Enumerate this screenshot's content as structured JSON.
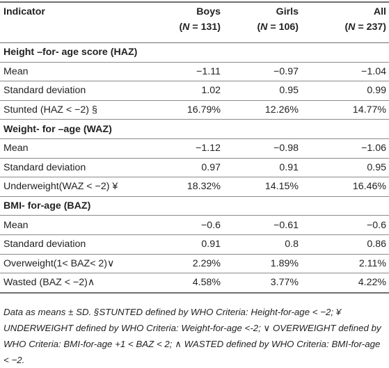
{
  "header": {
    "indicator": "Indicator",
    "columns": [
      {
        "name": "Boys",
        "n_label": "(N = 131)"
      },
      {
        "name": "Girls",
        "n_label": "(N = 106)"
      },
      {
        "name": "All",
        "n_label": "(N = 237)"
      }
    ]
  },
  "sections": [
    {
      "title": "Height –for- age score (HAZ)",
      "rows": [
        {
          "label": "Mean",
          "values": [
            "−1.11",
            "−0.97",
            "−1.04"
          ]
        },
        {
          "label": "Standard deviation",
          "values": [
            "1.02",
            "0.95",
            "0.99"
          ]
        },
        {
          "label": "Stunted (HAZ < −2) §",
          "values": [
            "16.79%",
            "12.26%",
            "14.77%"
          ]
        }
      ]
    },
    {
      "title": "Weight- for –age (WAZ)",
      "rows": [
        {
          "label": "Mean",
          "values": [
            "−1.12",
            "−0.98",
            "−1.06"
          ]
        },
        {
          "label": "Standard deviation",
          "values": [
            "0.97",
            "0.91",
            "0.95"
          ]
        },
        {
          "label": "Underweight(WAZ < −2) ¥",
          "values": [
            "18.32%",
            "14.15%",
            "16.46%"
          ]
        }
      ]
    },
    {
      "title": "BMI- for-age (BAZ)",
      "rows": [
        {
          "label": "Mean",
          "values": [
            "−0.6",
            "−0.61",
            "−0.6"
          ]
        },
        {
          "label": "Standard deviation",
          "values": [
            "0.91",
            "0.8",
            "0.86"
          ]
        },
        {
          "label": "Overweight(1< BAZ< 2)∨",
          "values": [
            "2.29%",
            "1.89%",
            "2.11%"
          ]
        },
        {
          "label": "Wasted (BAZ < −2)∧",
          "values": [
            "4.58%",
            "3.77%",
            "4.22%"
          ]
        }
      ]
    }
  ],
  "footnote": "Data as means ± SD. §STUNTED defined by WHO Criteria: Height-for-age < −2; ¥ UNDERWEIGHT defined by WHO Criteria: Weight-for-age <-2; ∨ OVERWEIGHT defined by WHO Criteria: BMI-for-age +1 < BAZ < 2; ∧ WASTED defined by WHO Criteria: BMI-for-age < −2."
}
